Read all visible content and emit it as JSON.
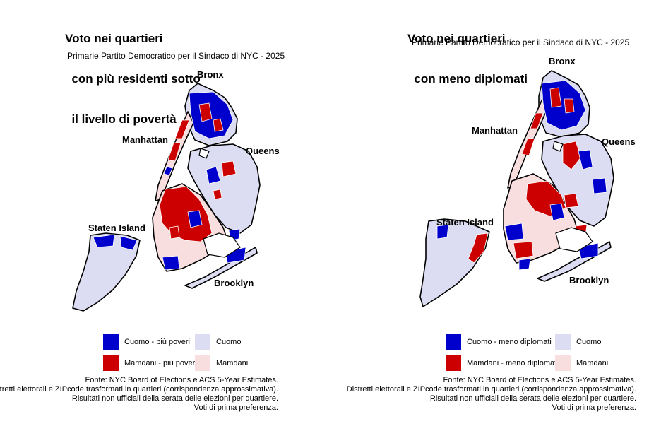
{
  "colors": {
    "cuomo_strong": "#0000cc",
    "cuomo_light": "#dcdcf2",
    "mamdani_strong": "#cc0000",
    "mamdani_light": "#f8dede",
    "outline": "#000000"
  },
  "panels": [
    {
      "title_lines": [
        "Voto nei quartieri",
        "  con più residenti sotto",
        "  il livello di povertà"
      ],
      "subtitle": "Primarie Partito Democratico per il Sindaco di NYC - 2025",
      "boroughs": {
        "bronx": "Bronx",
        "manhattan": "Manhattan",
        "queens": "Queens",
        "staten_island": "Staten Island",
        "brooklyn": "Brooklyn"
      },
      "legend": {
        "cuomo_strong": "Cuomo - più poveri",
        "cuomo_light": "Cuomo",
        "mamdani_strong": "Mamdani - più poveri",
        "mamdani_light": "Mamdani"
      },
      "source": [
        "Fonte: NYC Board of Elections e ACS 5-Year Estimates.",
        "Distretti elettorali e ZIPcode trasformati in quartieri (corrispondenza approssimativa).",
        "Risultati non ufficiali della serata delle elezioni per quartiere.",
        "Voti di prima preferenza."
      ]
    },
    {
      "title_lines": [
        "Voto nei quartieri",
        "  con meno diplomati"
      ],
      "subtitle": "Primarie Partito Democratico per il Sindaco di NYC - 2025",
      "boroughs": {
        "bronx": "Bronx",
        "manhattan": "Manhattan",
        "queens": "Queens",
        "staten_island": "Staten Island",
        "brooklyn": "Brooklyn"
      },
      "legend": {
        "cuomo_strong": "Cuomo - meno diplomati",
        "cuomo_light": "Cuomo",
        "mamdani_strong": "Mamdani - meno diplomati",
        "mamdani_light": "Mamdani"
      },
      "source": [
        "Fonte: NYC Board of Elections e ACS 5-Year Estimates.",
        "Distretti elettorali e ZIPcode trasformati in quartieri (corrispondenza approssimativa).",
        "Risultati non ufficiali della serata delle elezioni per quartiere.",
        "Voti di prima preferenza."
      ]
    }
  ]
}
